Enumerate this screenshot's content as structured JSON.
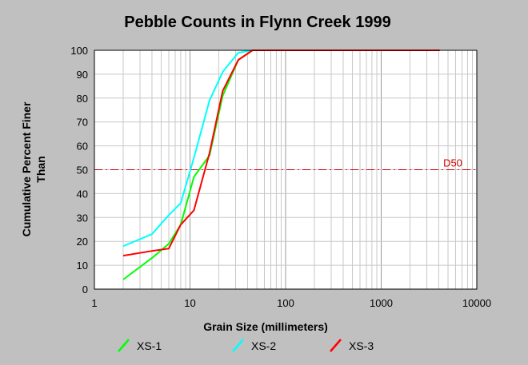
{
  "chart_data": {
    "type": "line",
    "title": "Pebble Counts in Flynn Creek 1999",
    "xlabel": "Grain Size (millimeters)",
    "ylabel_lines": [
      "Cumulative Percent Finer",
      "Than"
    ],
    "x_scale": "log",
    "xlim": [
      1,
      10000
    ],
    "ylim": [
      0,
      100
    ],
    "x_ticks": [
      1,
      10,
      100,
      1000,
      10000
    ],
    "x_tick_labels": [
      "1",
      "10",
      "100",
      "1000",
      "10000"
    ],
    "y_ticks": [
      0,
      10,
      20,
      30,
      40,
      50,
      60,
      70,
      80,
      90,
      100
    ],
    "y_tick_labels": [
      "0",
      "10",
      "20",
      "30",
      "40",
      "50",
      "60",
      "70",
      "80",
      "90",
      "100"
    ],
    "grid": true,
    "legend_position": "bottom",
    "series": [
      {
        "name": "XS-1",
        "color": "#00ff00",
        "x": [
          2,
          4,
          6,
          8,
          11,
          16,
          22,
          32,
          45,
          4096
        ],
        "y": [
          4,
          13,
          19,
          27,
          47,
          56,
          81,
          96,
          100,
          100
        ]
      },
      {
        "name": "XS-2",
        "color": "#00ffff",
        "x": [
          2,
          4,
          6,
          8,
          11,
          16,
          22,
          32,
          45
        ],
        "y": [
          18,
          23,
          31,
          36,
          55,
          79,
          91,
          99,
          100
        ]
      },
      {
        "name": "XS-3",
        "color": "#ff0000",
        "x": [
          2,
          4,
          6,
          8,
          11,
          16,
          22,
          32,
          45,
          4096
        ],
        "y": [
          14,
          16,
          17,
          27,
          33,
          57,
          83,
          96,
          100,
          100
        ]
      }
    ],
    "reference_line": {
      "label": "D50",
      "y": 50,
      "color": "#cc0000",
      "style": "dash-dot"
    }
  }
}
